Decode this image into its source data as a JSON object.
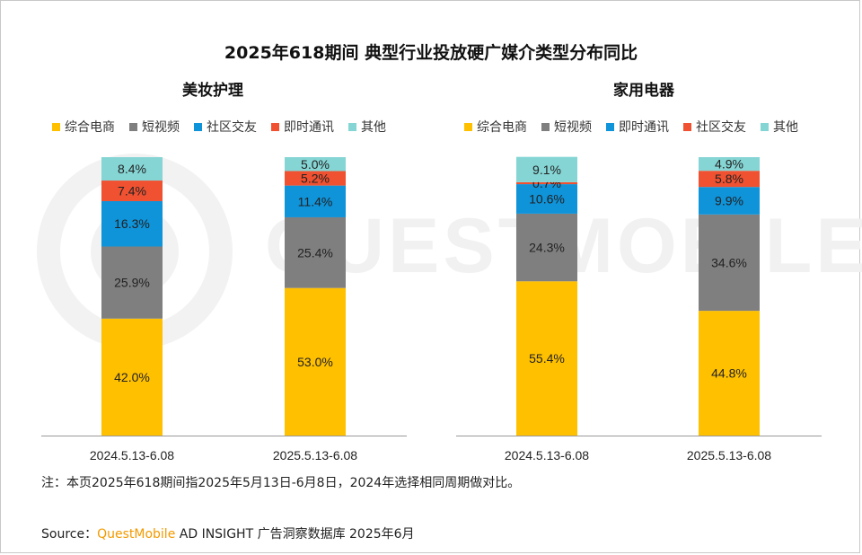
{
  "title": "2025年618期间 典型行业投放硬广媒介类型分布同比",
  "watermark": "QUESTMOBILE",
  "chart_data": [
    {
      "type": "bar",
      "stacked": true,
      "subtitle": "美妆护理",
      "categories": [
        "2024.5.13-6.08",
        "2025.5.13-6.08"
      ],
      "series": [
        {
          "name": "综合电商",
          "color": "#ffc000",
          "values": [
            42.0,
            53.0
          ],
          "labels": [
            "42.0%",
            "53.0%"
          ]
        },
        {
          "name": "短视频",
          "color": "#7f7f7f",
          "values": [
            25.9,
            25.4
          ],
          "labels": [
            "25.9%",
            "25.4%"
          ]
        },
        {
          "name": "社区交友",
          "color": "#0f93d9",
          "values": [
            16.3,
            11.4
          ],
          "labels": [
            "16.3%",
            "11.4%"
          ]
        },
        {
          "name": "即时通讯",
          "color": "#ef5131",
          "values": [
            7.4,
            5.2
          ],
          "labels": [
            "7.4%",
            "5.2%"
          ]
        },
        {
          "name": "其他",
          "color": "#86d5d5",
          "values": [
            8.4,
            5.0
          ],
          "labels": [
            "8.4%",
            "5.0%"
          ]
        }
      ],
      "ylim": [
        0,
        100
      ],
      "legend_position": "top"
    },
    {
      "type": "bar",
      "stacked": true,
      "subtitle": "家用电器",
      "categories": [
        "2024.5.13-6.08",
        "2025.5.13-6.08"
      ],
      "series": [
        {
          "name": "综合电商",
          "color": "#ffc000",
          "values": [
            55.4,
            44.8
          ],
          "labels": [
            "55.4%",
            "44.8%"
          ]
        },
        {
          "name": "短视频",
          "color": "#7f7f7f",
          "values": [
            24.3,
            34.6
          ],
          "labels": [
            "24.3%",
            "34.6%"
          ]
        },
        {
          "name": "即时通讯",
          "color": "#0f93d9",
          "values": [
            10.6,
            9.9
          ],
          "labels": [
            "10.6%",
            "9.9%"
          ]
        },
        {
          "name": "社区交友",
          "color": "#ef5131",
          "values": [
            0.7,
            5.8
          ],
          "labels": [
            "0.7%",
            "5.8%"
          ]
        },
        {
          "name": "其他",
          "color": "#86d5d5",
          "values": [
            9.1,
            4.9
          ],
          "labels": [
            "9.1%",
            "4.9%"
          ]
        }
      ],
      "ylim": [
        0,
        100
      ],
      "legend_position": "top"
    }
  ],
  "note": "注：本页2025年618期间指2025年5月13日-6月8日，2024年选择相同周期做对比。",
  "source": {
    "prefix": "Source：",
    "brand": "QuestMobile",
    "rest": " AD INSIGHT 广告洞察数据库 2025年6月"
  }
}
